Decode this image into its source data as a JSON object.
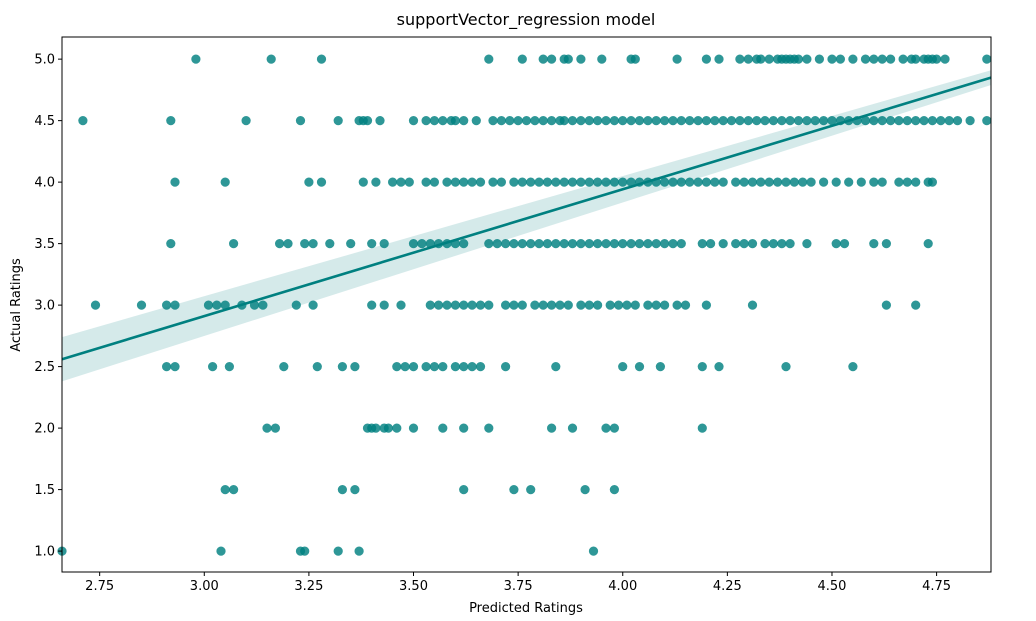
{
  "chart_data": {
    "type": "scatter",
    "title": "supportVector_regression model",
    "xlabel": "Predicted Ratings",
    "ylabel": "Actual Ratings",
    "xlim": [
      2.66,
      4.88
    ],
    "ylim": [
      0.83,
      5.18
    ],
    "xticks": [
      "2.75",
      "3.00",
      "3.25",
      "3.50",
      "3.75",
      "4.00",
      "4.25",
      "4.50",
      "4.75"
    ],
    "yticks": [
      "1.0",
      "1.5",
      "2.0",
      "2.5",
      "3.0",
      "3.5",
      "4.0",
      "4.5",
      "5.0"
    ],
    "grid": false,
    "point_color": "#008080",
    "line_color": "#008080",
    "band_color": "#b2d8d8",
    "regression": {
      "x": [
        2.66,
        4.88
      ],
      "y": [
        2.56,
        4.85
      ],
      "ci_lower": [
        2.38,
        4.79
      ],
      "ci_upper": [
        2.74,
        4.91
      ]
    },
    "points": [
      {
        "y": 5.0,
        "x": [
          2.98,
          3.16,
          3.28,
          3.68,
          3.76,
          3.81,
          3.83,
          3.86,
          3.87,
          3.9,
          3.95,
          4.02,
          4.03,
          4.13,
          4.2,
          4.23,
          4.28,
          4.3,
          4.32,
          4.33,
          4.35,
          4.37,
          4.38,
          4.39,
          4.4,
          4.41,
          4.42,
          4.44,
          4.47,
          4.5,
          4.52,
          4.55,
          4.58,
          4.6,
          4.62,
          4.64,
          4.67,
          4.69,
          4.7,
          4.72,
          4.73,
          4.74,
          4.75,
          4.77,
          4.87
        ]
      },
      {
        "y": 4.5,
        "x": [
          2.71,
          2.92,
          3.1,
          3.23,
          3.32,
          3.37,
          3.38,
          3.39,
          3.42,
          3.5,
          3.53,
          3.55,
          3.57,
          3.59,
          3.6,
          3.62,
          3.65,
          3.69,
          3.71,
          3.73,
          3.75,
          3.77,
          3.79,
          3.81,
          3.83,
          3.85,
          3.86,
          3.88,
          3.9,
          3.92,
          3.94,
          3.96,
          3.98,
          4.0,
          4.02,
          4.04,
          4.06,
          4.08,
          4.1,
          4.12,
          4.14,
          4.16,
          4.18,
          4.2,
          4.22,
          4.24,
          4.26,
          4.28,
          4.3,
          4.32,
          4.34,
          4.36,
          4.38,
          4.4,
          4.42,
          4.44,
          4.46,
          4.48,
          4.5,
          4.52,
          4.54,
          4.56,
          4.58,
          4.6,
          4.62,
          4.64,
          4.66,
          4.68,
          4.7,
          4.72,
          4.74,
          4.76,
          4.78,
          4.8,
          4.83,
          4.87
        ]
      },
      {
        "y": 4.0,
        "x": [
          2.93,
          3.05,
          3.25,
          3.28,
          3.38,
          3.41,
          3.45,
          3.47,
          3.49,
          3.53,
          3.55,
          3.58,
          3.6,
          3.62,
          3.64,
          3.66,
          3.69,
          3.71,
          3.74,
          3.76,
          3.78,
          3.8,
          3.82,
          3.84,
          3.86,
          3.88,
          3.9,
          3.92,
          3.94,
          3.96,
          3.98,
          4.0,
          4.02,
          4.04,
          4.06,
          4.08,
          4.1,
          4.12,
          4.14,
          4.16,
          4.18,
          4.2,
          4.22,
          4.24,
          4.27,
          4.29,
          4.31,
          4.33,
          4.35,
          4.37,
          4.39,
          4.41,
          4.43,
          4.45,
          4.48,
          4.51,
          4.54,
          4.57,
          4.6,
          4.62,
          4.66,
          4.68,
          4.7,
          4.73,
          4.74
        ]
      },
      {
        "y": 3.5,
        "x": [
          2.92,
          3.07,
          3.18,
          3.2,
          3.24,
          3.26,
          3.3,
          3.35,
          3.4,
          3.43,
          3.5,
          3.52,
          3.54,
          3.56,
          3.58,
          3.6,
          3.62,
          3.68,
          3.7,
          3.72,
          3.74,
          3.76,
          3.78,
          3.8,
          3.82,
          3.84,
          3.86,
          3.88,
          3.9,
          3.92,
          3.94,
          3.96,
          3.98,
          4.0,
          4.02,
          4.04,
          4.06,
          4.08,
          4.1,
          4.12,
          4.14,
          4.19,
          4.21,
          4.24,
          4.27,
          4.29,
          4.31,
          4.34,
          4.36,
          4.38,
          4.4,
          4.44,
          4.51,
          4.53,
          4.6,
          4.63,
          4.73
        ]
      },
      {
        "y": 3.0,
        "x": [
          2.74,
          2.85,
          2.91,
          2.93,
          3.01,
          3.03,
          3.05,
          3.09,
          3.12,
          3.14,
          3.22,
          3.26,
          3.4,
          3.43,
          3.47,
          3.54,
          3.56,
          3.58,
          3.6,
          3.62,
          3.64,
          3.66,
          3.68,
          3.72,
          3.74,
          3.76,
          3.79,
          3.81,
          3.83,
          3.85,
          3.87,
          3.9,
          3.92,
          3.94,
          3.97,
          3.99,
          4.01,
          4.03,
          4.06,
          4.08,
          4.1,
          4.13,
          4.15,
          4.2,
          4.31,
          4.63,
          4.7
        ]
      },
      {
        "y": 2.5,
        "x": [
          2.91,
          2.93,
          3.02,
          3.06,
          3.19,
          3.27,
          3.33,
          3.36,
          3.46,
          3.48,
          3.5,
          3.53,
          3.55,
          3.57,
          3.6,
          3.62,
          3.64,
          3.66,
          3.72,
          3.84,
          4.0,
          4.04,
          4.09,
          4.19,
          4.23,
          4.39,
          4.55
        ]
      },
      {
        "y": 2.0,
        "x": [
          3.15,
          3.17,
          3.39,
          3.4,
          3.41,
          3.43,
          3.44,
          3.46,
          3.5,
          3.57,
          3.62,
          3.68,
          3.83,
          3.88,
          3.96,
          3.98,
          4.19
        ]
      },
      {
        "y": 1.5,
        "x": [
          3.05,
          3.07,
          3.33,
          3.36,
          3.62,
          3.74,
          3.78,
          3.91,
          3.98
        ]
      },
      {
        "y": 1.0,
        "x": [
          2.66,
          3.04,
          3.23,
          3.24,
          3.32,
          3.37,
          3.93
        ]
      }
    ]
  }
}
